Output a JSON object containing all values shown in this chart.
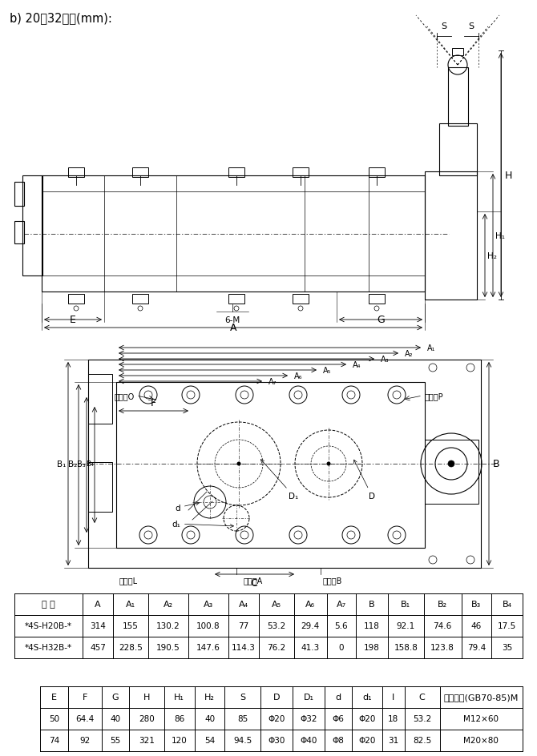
{
  "title": "b) 20、32通径(mm):",
  "bg_color": "#ffffff",
  "table1_headers": [
    "型 号",
    "A",
    "A₁",
    "A₂",
    "A₃",
    "A₄",
    "A₅",
    "A₆",
    "A₇",
    "B",
    "B₁",
    "B₂",
    "B₃",
    "B₄"
  ],
  "table1_rows": [
    [
      "*4S-H20B-*",
      "314",
      "155",
      "130.2",
      "100.8",
      "77",
      "53.2",
      "29.4",
      "5.6",
      "118",
      "92.1",
      "74.6",
      "46",
      "17.5"
    ],
    [
      "*4S-H32B-*",
      "457",
      "228.5",
      "190.5",
      "147.6",
      "114.3",
      "76.2",
      "41.3",
      "0",
      "198",
      "158.8",
      "123.8",
      "79.4",
      "35"
    ]
  ],
  "table2_headers": [
    "E",
    "F",
    "G",
    "H",
    "H₁",
    "H₂",
    "S",
    "D",
    "D₁",
    "d",
    "d₁",
    "I",
    "C",
    "安装螺栓(GB70-85)M"
  ],
  "table2_rows": [
    [
      "50",
      "64.4",
      "40",
      "280",
      "86",
      "40",
      "85",
      "Φ20",
      "Φ32",
      "Φ6",
      "Φ20",
      "18",
      "53.2",
      "M12×60"
    ],
    [
      "74",
      "92",
      "55",
      "321",
      "120",
      "54",
      "94.5",
      "Φ30",
      "Φ40",
      "Φ8",
      "Φ20",
      "31",
      "82.5",
      "M20×80"
    ]
  ]
}
